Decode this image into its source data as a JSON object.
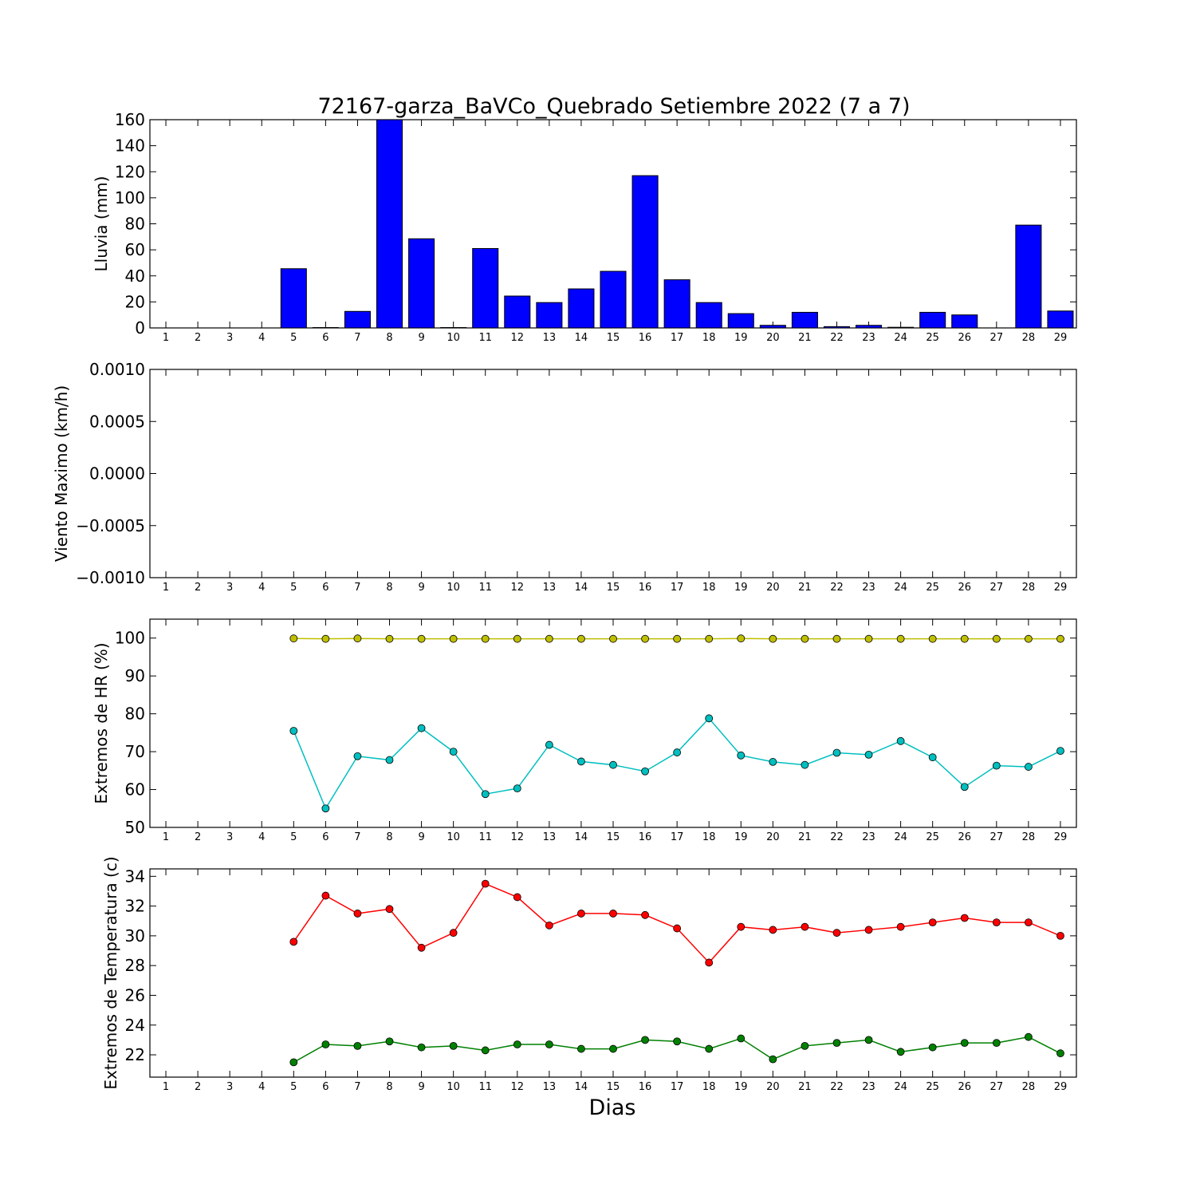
{
  "title": "72167-garza_BaVCo_Quebrado Setiembre 2022  (7 a 7)",
  "xlabel": "Dias",
  "colors": {
    "rain": "#0000ff",
    "hr_max": "#bfbf00",
    "hr_min": "#00bfbf",
    "t_max": "#ff0000",
    "t_min": "#008000"
  },
  "chart_data": [
    {
      "type": "bar",
      "ylabel": "Lluvia (mm)",
      "ylim": [
        0,
        160
      ],
      "yticks": [
        "0",
        "20",
        "40",
        "60",
        "80",
        "100",
        "120",
        "140",
        "160"
      ],
      "categories": [
        "1",
        "2",
        "3",
        "4",
        "5",
        "6",
        "7",
        "8",
        "9",
        "10",
        "11",
        "12",
        "13",
        "14",
        "15",
        "16",
        "17",
        "18",
        "19",
        "20",
        "21",
        "22",
        "23",
        "24",
        "25",
        "26",
        "27",
        "28",
        "29"
      ],
      "values": [
        0,
        0,
        0,
        0,
        45.5,
        0.3,
        12.7,
        160,
        68.5,
        0.3,
        61,
        24.5,
        19.5,
        30,
        43.5,
        117,
        37,
        19.5,
        11,
        2,
        12,
        1,
        2,
        0.5,
        12,
        10,
        0,
        79,
        13
      ]
    },
    {
      "type": "line",
      "ylabel": "Viento Maximo (km/h)",
      "ylim": [
        -0.001,
        0.001
      ],
      "yticks": [
        "−0.0010",
        "−0.0005",
        "0.0000",
        "0.0005",
        "0.0010"
      ],
      "categories": [
        "1",
        "2",
        "3",
        "4",
        "5",
        "6",
        "7",
        "8",
        "9",
        "10",
        "11",
        "12",
        "13",
        "14",
        "15",
        "16",
        "17",
        "18",
        "19",
        "20",
        "21",
        "22",
        "23",
        "24",
        "25",
        "26",
        "27",
        "28",
        "29"
      ],
      "series": []
    },
    {
      "type": "line",
      "ylabel": "Extremos de HR (%)",
      "ylim": [
        50,
        105
      ],
      "yticks": [
        "50",
        "60",
        "70",
        "80",
        "90",
        "100"
      ],
      "categories": [
        "1",
        "2",
        "3",
        "4",
        "5",
        "6",
        "7",
        "8",
        "9",
        "10",
        "11",
        "12",
        "13",
        "14",
        "15",
        "16",
        "17",
        "18",
        "19",
        "20",
        "21",
        "22",
        "23",
        "24",
        "25",
        "26",
        "27",
        "28",
        "29"
      ],
      "x": [
        5,
        6,
        7,
        8,
        9,
        10,
        11,
        12,
        13,
        14,
        15,
        16,
        17,
        18,
        19,
        20,
        21,
        22,
        23,
        24,
        25,
        26,
        27,
        28,
        29
      ],
      "series": [
        {
          "values": [
            99.9,
            99.8,
            99.9,
            99.8,
            99.8,
            99.8,
            99.8,
            99.8,
            99.8,
            99.8,
            99.8,
            99.8,
            99.8,
            99.8,
            99.9,
            99.8,
            99.8,
            99.8,
            99.8,
            99.8,
            99.8,
            99.8,
            99.8,
            99.8,
            99.8
          ]
        },
        {
          "values": [
            75.5,
            55,
            68.8,
            67.8,
            76.2,
            70,
            58.8,
            60.3,
            71.8,
            67.4,
            66.5,
            64.8,
            69.8,
            78.8,
            69,
            67.3,
            66.5,
            69.7,
            69.2,
            72.8,
            68.5,
            60.7,
            66.3,
            66,
            70.2
          ]
        }
      ]
    },
    {
      "type": "line",
      "ylabel": "Extremos de Temperatura (c)",
      "ylim": [
        20.5,
        34.5
      ],
      "yticks": [
        "22",
        "24",
        "26",
        "28",
        "30",
        "32",
        "34"
      ],
      "categories": [
        "1",
        "2",
        "3",
        "4",
        "5",
        "6",
        "7",
        "8",
        "9",
        "10",
        "11",
        "12",
        "13",
        "14",
        "15",
        "16",
        "17",
        "18",
        "19",
        "20",
        "21",
        "22",
        "23",
        "24",
        "25",
        "26",
        "27",
        "28",
        "29"
      ],
      "x": [
        5,
        6,
        7,
        8,
        9,
        10,
        11,
        12,
        13,
        14,
        15,
        16,
        17,
        18,
        19,
        20,
        21,
        22,
        23,
        24,
        25,
        26,
        27,
        28,
        29
      ],
      "series": [
        {
          "values": [
            29.6,
            32.7,
            31.5,
            31.8,
            29.2,
            30.2,
            33.5,
            32.6,
            30.7,
            31.5,
            31.5,
            31.4,
            30.5,
            28.2,
            30.6,
            30.4,
            30.6,
            30.2,
            30.4,
            30.6,
            30.9,
            31.2,
            30.9,
            30.9,
            30
          ]
        },
        {
          "values": [
            21.5,
            22.7,
            22.6,
            22.9,
            22.5,
            22.6,
            22.3,
            22.7,
            22.7,
            22.4,
            22.4,
            23,
            22.9,
            22.4,
            23.1,
            21.7,
            22.6,
            22.8,
            23,
            22.2,
            22.5,
            22.8,
            22.8,
            23.2,
            22.1
          ]
        }
      ]
    }
  ]
}
